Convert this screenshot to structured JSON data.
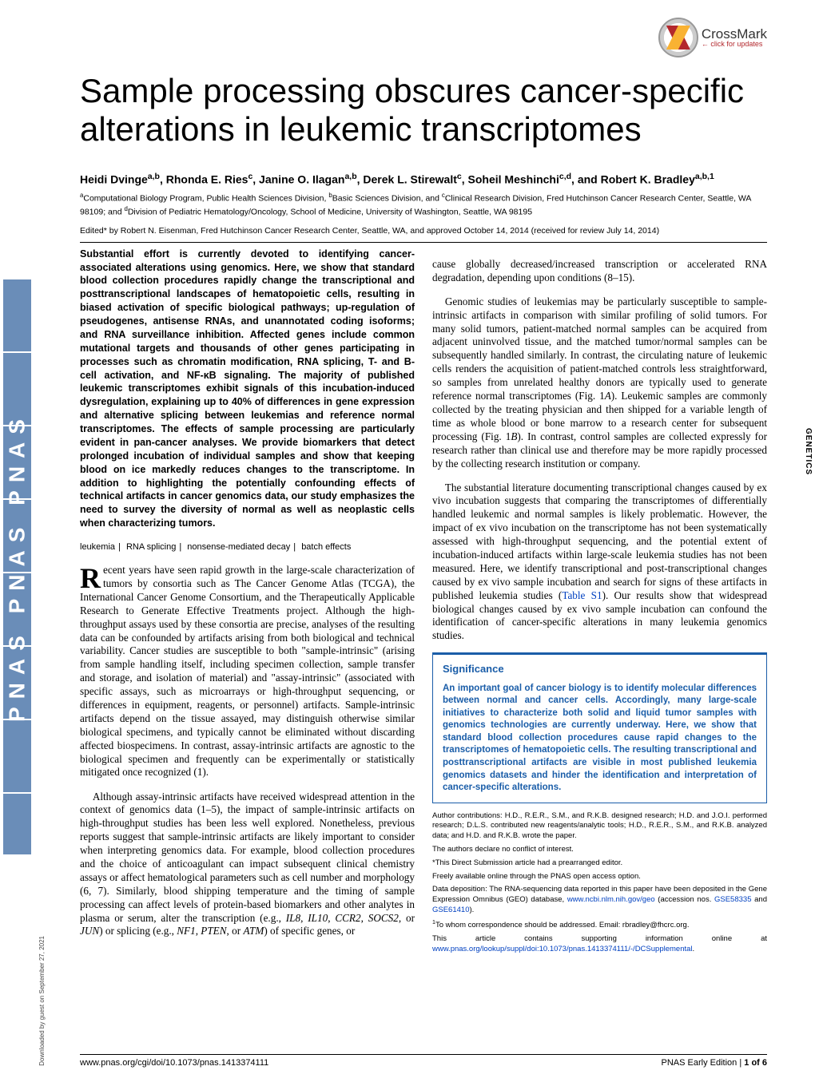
{
  "crossmark": {
    "label": "CrossMark",
    "sub": "← click for updates"
  },
  "title": "Sample processing obscures cancer-specific alterations in leukemic transcriptomes",
  "authors_html": "Heidi Dvinge<sup>a,b</sup>, Rhonda E. Ries<sup>c</sup>, Janine O. Ilagan<sup>a,b</sup>, Derek L. Stirewalt<sup>c</sup>, Soheil Meshinchi<sup>c,d</sup>, and Robert K. Bradley<sup>a,b,1</sup>",
  "affiliations_html": "<sup>a</sup>Computational Biology Program, Public Health Sciences Division, <sup>b</sup>Basic Sciences Division, and <sup>c</sup>Clinical Research Division, Fred Hutchinson Cancer Research Center, Seattle, WA 98109; and <sup>d</sup>Division of Pediatric Hematology/Oncology, School of Medicine, University of Washington, Seattle, WA 98195",
  "edited": "Edited* by Robert N. Eisenman, Fred Hutchinson Cancer Research Center, Seattle, WA, and approved October 14, 2014 (received for review July 14, 2014)",
  "abstract": "Substantial effort is currently devoted to identifying cancer-associated alterations using genomics. Here, we show that standard blood collection procedures rapidly change the transcriptional and posttranscriptional landscapes of hematopoietic cells, resulting in biased activation of specific biological pathways; up-regulation of pseudogenes, antisense RNAs, and unannotated coding isoforms; and RNA surveillance inhibition. Affected genes include common mutational targets and thousands of other genes participating in processes such as chromatin modification, RNA splicing, T- and B-cell activation, and NF-κB signaling. The majority of published leukemic transcriptomes exhibit signals of this incubation-induced dysregulation, explaining up to 40% of differences in gene expression and alternative splicing between leukemias and reference normal transcriptomes. The effects of sample processing are particularly evident in pan-cancer analyses. We provide biomarkers that detect prolonged incubation of individual samples and show that keeping blood on ice markedly reduces changes to the transcriptome. In addition to highlighting the potentially confounding effects of technical artifacts in cancer genomics data, our study emphasizes the need to survey the diversity of normal as well as neoplastic cells when characterizing tumors.",
  "keywords": [
    "leukemia",
    "RNA splicing",
    "nonsense-mediated decay",
    "batch effects"
  ],
  "body_left_dropcap": "R",
  "body_left_p1": "ecent years have seen rapid growth in the large-scale characterization of tumors by consortia such as The Cancer Genome Atlas (TCGA), the International Cancer Genome Consortium, and the Therapeutically Applicable Research to Generate Effective Treatments project. Although the high-throughput assays used by these consortia are precise, analyses of the resulting data can be confounded by artifacts arising from both biological and technical variability. Cancer studies are susceptible to both \"sample-intrinsic\" (arising from sample handling itself, including specimen collection, sample transfer and storage, and isolation of material) and \"assay-intrinsic\" (associated with specific assays, such as microarrays or high-throughput sequencing, or differences in equipment, reagents, or personnel) artifacts. Sample-intrinsic artifacts depend on the tissue assayed, may distinguish otherwise similar biological specimens, and typically cannot be eliminated without discarding affected biospecimens. In contrast, assay-intrinsic artifacts are agnostic to the biological specimen and frequently can be experimentally or statistically mitigated once recognized (1).",
  "body_left_p2": "Although assay-intrinsic artifacts have received widespread attention in the context of genomics data (1–5), the impact of sample-intrinsic artifacts on high-throughput studies has been less well explored. Nonetheless, previous reports suggest that sample-intrinsic artifacts are likely important to consider when interpreting genomics data. For example, blood collection procedures and the choice of anticoagulant can impact subsequent clinical chemistry assays or affect hematological parameters such as cell number and morphology (6, 7). Similarly, blood shipping temperature and the timing of sample processing can affect levels of protein-based biomarkers and other analytes in plasma or serum, alter the transcription (e.g., <i>IL8</i>, <i>IL10</i>, <i>CCR2</i>, <i>SOCS2</i>, or <i>JUN</i>) or splicing (e.g., <i>NF1</i>, <i>PTEN</i>, or <i>ATM</i>) of specific genes, or",
  "body_right_p1": "cause globally decreased/increased transcription or accelerated RNA degradation, depending upon conditions (8–15).",
  "body_right_p2": "Genomic studies of leukemias may be particularly susceptible to sample-intrinsic artifacts in comparison with similar profiling of solid tumors. For many solid tumors, patient-matched normal samples can be acquired from adjacent uninvolved tissue, and the matched tumor/normal samples can be subsequently handled similarly. In contrast, the circulating nature of leukemic cells renders the acquisition of patient-matched controls less straightforward, so samples from unrelated healthy donors are typically used to generate reference normal transcriptomes (Fig. 1<i>A</i>). Leukemic samples are commonly collected by the treating physician and then shipped for a variable length of time as whole blood or bone marrow to a research center for subsequent processing (Fig. 1<i>B</i>). In contrast, control samples are collected expressly for research rather than clinical use and therefore may be more rapidly processed by the collecting research institution or company.",
  "body_right_p3_html": "The substantial literature documenting transcriptional changes caused by ex vivo incubation suggests that comparing the transcriptomes of differentially handled leukemic and normal samples is likely problematic. However, the impact of ex vivo incubation on the transcriptome has not been systematically assessed with high-throughput sequencing, and the potential extent of incubation-induced artifacts within large-scale leukemia studies has not been measured. Here, we identify transcriptional and post-transcriptional changes caused by ex vivo sample incubation and search for signs of these artifacts in published leukemia studies (<span class=\"link\">Table S1</span>). Our results show that widespread biological changes caused by ex vivo sample incubation can confound the identification of cancer-specific alterations in many leukemia genomics studies.",
  "significance": {
    "title": "Significance",
    "body": "An important goal of cancer biology is to identify molecular differences between normal and cancer cells. Accordingly, many large-scale initiatives to characterize both solid and liquid tumor samples with genomics technologies are currently underway. Here, we show that standard blood collection procedures cause rapid changes to the transcriptomes of hematopoietic cells. The resulting transcriptional and posttranscriptional artifacts are visible in most published leukemia genomics datasets and hinder the identification and interpretation of cancer-specific alterations."
  },
  "footnotes": {
    "contrib": "Author contributions: H.D., R.E.R., S.M., and R.K.B. designed research; H.D. and J.O.I. performed research; D.L.S. contributed new reagents/analytic tools; H.D., R.E.R., S.M., and R.K.B. analyzed data; and H.D. and R.K.B. wrote the paper.",
    "conflict": "The authors declare no conflict of interest.",
    "direct": "*This Direct Submission article had a prearranged editor.",
    "openaccess": "Freely available online through the PNAS open access option.",
    "data_html": "Data deposition: The RNA-sequencing data reported in this paper have been deposited in the Gene Expression Omnibus (GEO) database, <span class=\"link\">www.ncbi.nlm.nih.gov/geo</span> (accession nos. <span class=\"link\">GSE58335</span> and <span class=\"link\">GSE61410</span>).",
    "corr_html": "<sup>1</sup>To whom correspondence should be addressed. Email: rbradley@fhcrc.org.",
    "supp_html": "This article contains supporting information online at <span class=\"link\">www.pnas.org/lookup/suppl/doi:10.1073/pnas.1413374111/-/DCSupplemental</span>."
  },
  "footer": {
    "doi": "www.pnas.org/cgi/doi/10.1073/pnas.1413374111",
    "page_html": "PNAS Early Edition | <b>1 of 6</b>"
  },
  "side": {
    "pnas": "PNAS PNAS PNAS",
    "genetics": "GENETICS",
    "download": "Downloaded by guest on September 27, 2021"
  },
  "colors": {
    "link": "#0040c0",
    "sigbox": "#1a5da8",
    "pnas_side": "#6a8db8",
    "crossmark_red": "#b3282d"
  }
}
